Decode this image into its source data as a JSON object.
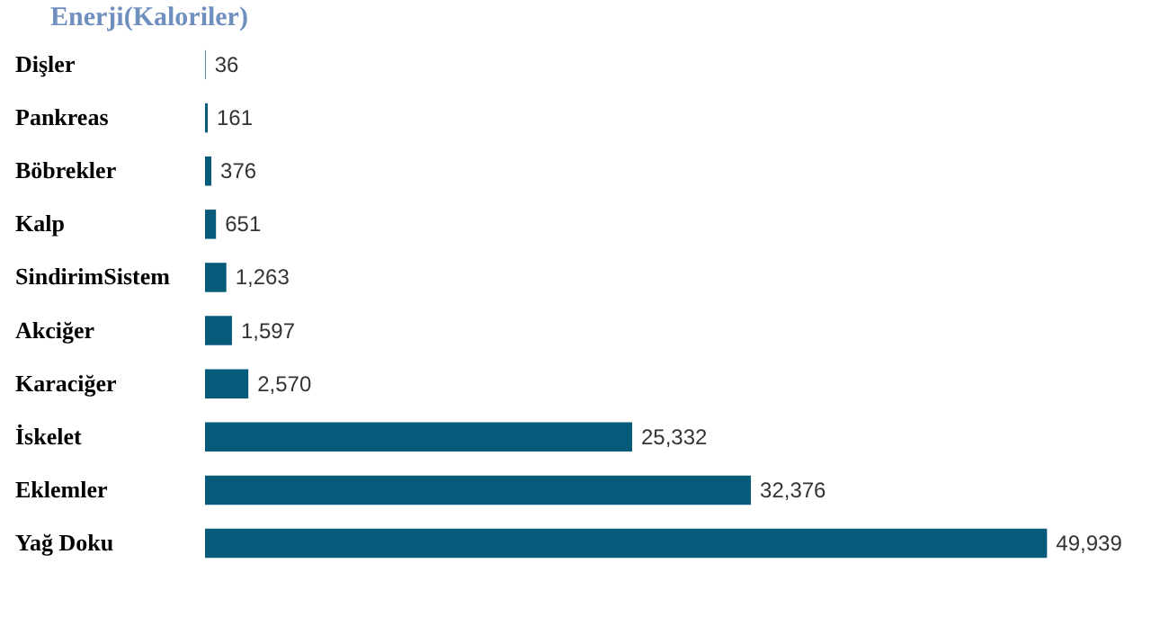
{
  "chart_data": {
    "type": "bar",
    "orientation": "horizontal",
    "title": "Enerji(Kaloriler)",
    "categories": [
      "Dişler",
      "Pankreas",
      "Böbrekler",
      "Kalp",
      "SindirimSistem",
      "Akciğer",
      "Karaciğer",
      "İskelet",
      "Eklemler",
      "Yağ Doku"
    ],
    "values": [
      36,
      161,
      376,
      651,
      1263,
      1597,
      2570,
      25332,
      32376,
      49939
    ],
    "value_labels": [
      "36",
      "161",
      "376",
      "651",
      "1,263",
      "1,597",
      "2,570",
      "25,332",
      "32,376",
      "49,939"
    ],
    "color": "#065a7a"
  }
}
